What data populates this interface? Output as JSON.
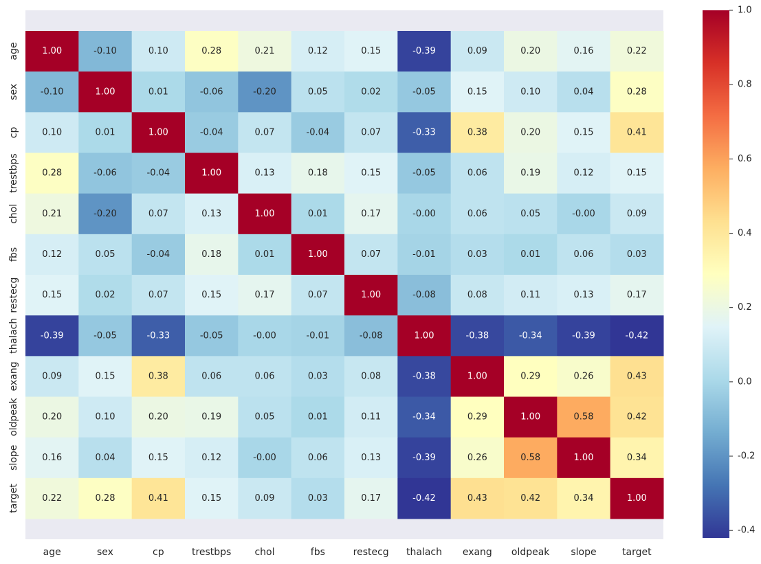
{
  "chart_data": {
    "type": "heatmap",
    "title": "",
    "xlabel": "",
    "ylabel": "",
    "x_labels": [
      "age",
      "sex",
      "cp",
      "trestbps",
      "chol",
      "fbs",
      "restecg",
      "thalach",
      "exang",
      "oldpeak",
      "slope",
      "target"
    ],
    "y_labels": [
      "age",
      "sex",
      "cp",
      "trestbps",
      "chol",
      "fbs",
      "restecg",
      "thalach",
      "exang",
      "oldpeak",
      "slope",
      "target"
    ],
    "values": [
      [
        1.0,
        -0.1,
        0.1,
        0.28,
        0.21,
        0.12,
        0.15,
        -0.39,
        0.09,
        0.2,
        0.16,
        0.22
      ],
      [
        -0.1,
        1.0,
        0.01,
        -0.06,
        -0.2,
        0.05,
        0.02,
        -0.05,
        0.15,
        0.1,
        0.04,
        0.28
      ],
      [
        0.1,
        0.01,
        1.0,
        -0.04,
        0.07,
        -0.04,
        0.07,
        -0.33,
        0.38,
        0.2,
        0.15,
        0.41
      ],
      [
        0.28,
        -0.06,
        -0.04,
        1.0,
        0.13,
        0.18,
        0.15,
        -0.05,
        0.06,
        0.19,
        0.12,
        0.15
      ],
      [
        0.21,
        -0.2,
        0.07,
        0.13,
        1.0,
        0.01,
        0.17,
        -0.0,
        0.06,
        0.05,
        -0.0,
        0.09
      ],
      [
        0.12,
        0.05,
        -0.04,
        0.18,
        0.01,
        1.0,
        0.07,
        -0.01,
        0.03,
        0.01,
        0.06,
        0.03
      ],
      [
        0.15,
        0.02,
        0.07,
        0.15,
        0.17,
        0.07,
        1.0,
        -0.08,
        0.08,
        0.11,
        0.13,
        0.17
      ],
      [
        -0.39,
        -0.05,
        -0.33,
        -0.05,
        -0.0,
        -0.01,
        -0.08,
        1.0,
        -0.38,
        -0.34,
        -0.39,
        -0.42
      ],
      [
        0.09,
        0.15,
        0.38,
        0.06,
        0.06,
        0.03,
        0.08,
        -0.38,
        1.0,
        0.29,
        0.26,
        0.43
      ],
      [
        0.2,
        0.1,
        0.2,
        0.19,
        0.05,
        0.01,
        0.11,
        -0.34,
        0.29,
        1.0,
        0.58,
        0.42
      ],
      [
        0.16,
        0.04,
        0.15,
        0.12,
        -0.0,
        0.06,
        0.13,
        -0.39,
        0.26,
        0.58,
        1.0,
        0.34
      ],
      [
        0.22,
        0.28,
        0.41,
        0.15,
        0.09,
        0.03,
        0.17,
        -0.42,
        0.43,
        0.42,
        0.34,
        1.0
      ]
    ],
    "value_labels": [
      [
        "1.00",
        "-0.10",
        "0.10",
        "0.28",
        "0.21",
        "0.12",
        "0.15",
        "-0.39",
        "0.09",
        "0.20",
        "0.16",
        "0.22"
      ],
      [
        "-0.10",
        "1.00",
        "0.01",
        "-0.06",
        "-0.20",
        "0.05",
        "0.02",
        "-0.05",
        "0.15",
        "0.10",
        "0.04",
        "0.28"
      ],
      [
        "0.10",
        "0.01",
        "1.00",
        "-0.04",
        "0.07",
        "-0.04",
        "0.07",
        "-0.33",
        "0.38",
        "0.20",
        "0.15",
        "0.41"
      ],
      [
        "0.28",
        "-0.06",
        "-0.04",
        "1.00",
        "0.13",
        "0.18",
        "0.15",
        "-0.05",
        "0.06",
        "0.19",
        "0.12",
        "0.15"
      ],
      [
        "0.21",
        "-0.20",
        "0.07",
        "0.13",
        "1.00",
        "0.01",
        "0.17",
        "-0.00",
        "0.06",
        "0.05",
        "-0.00",
        "0.09"
      ],
      [
        "0.12",
        "0.05",
        "-0.04",
        "0.18",
        "0.01",
        "1.00",
        "0.07",
        "-0.01",
        "0.03",
        "0.01",
        "0.06",
        "0.03"
      ],
      [
        "0.15",
        "0.02",
        "0.07",
        "0.15",
        "0.17",
        "0.07",
        "1.00",
        "-0.08",
        "0.08",
        "0.11",
        "0.13",
        "0.17"
      ],
      [
        "-0.39",
        "-0.05",
        "-0.33",
        "-0.05",
        "-0.00",
        "-0.01",
        "-0.08",
        "1.00",
        "-0.38",
        "-0.34",
        "-0.39",
        "-0.42"
      ],
      [
        "0.09",
        "0.15",
        "0.38",
        "0.06",
        "0.06",
        "0.03",
        "0.08",
        "-0.38",
        "1.00",
        "0.29",
        "0.26",
        "0.43"
      ],
      [
        "0.20",
        "0.10",
        "0.20",
        "0.19",
        "0.05",
        "0.01",
        "0.11",
        "-0.34",
        "0.29",
        "1.00",
        "0.58",
        "0.42"
      ],
      [
        "0.16",
        "0.04",
        "0.15",
        "0.12",
        "-0.00",
        "0.06",
        "0.13",
        "-0.39",
        "0.26",
        "0.58",
        "1.00",
        "0.34"
      ],
      [
        "0.22",
        "0.28",
        "0.41",
        "0.15",
        "0.09",
        "0.03",
        "0.17",
        "-0.42",
        "0.43",
        "0.42",
        "0.34",
        "1.00"
      ]
    ],
    "colormap": "RdYlBu_r",
    "vmin": -0.42,
    "vmax": 1.0,
    "colorbar": {
      "ticks": [
        -0.4,
        -0.2,
        0.0,
        0.2,
        0.4,
        0.6,
        0.8,
        1.0
      ],
      "tick_labels": [
        "-0.4",
        "-0.2",
        "0.0",
        "0.2",
        "0.4",
        "0.6",
        "0.8",
        "1.0"
      ]
    },
    "grid": false,
    "legend": "colorbar-right",
    "colors": {
      "axes_background": "#eaeaf2",
      "text_dark": "#262626",
      "text_light": "#ffffff",
      "colormap_stops": [
        "#313695",
        "#4575b4",
        "#74add1",
        "#abd9e9",
        "#e0f3f8",
        "#ffffbf",
        "#fee090",
        "#fdae61",
        "#f46d43",
        "#d73027",
        "#a50026"
      ]
    }
  }
}
